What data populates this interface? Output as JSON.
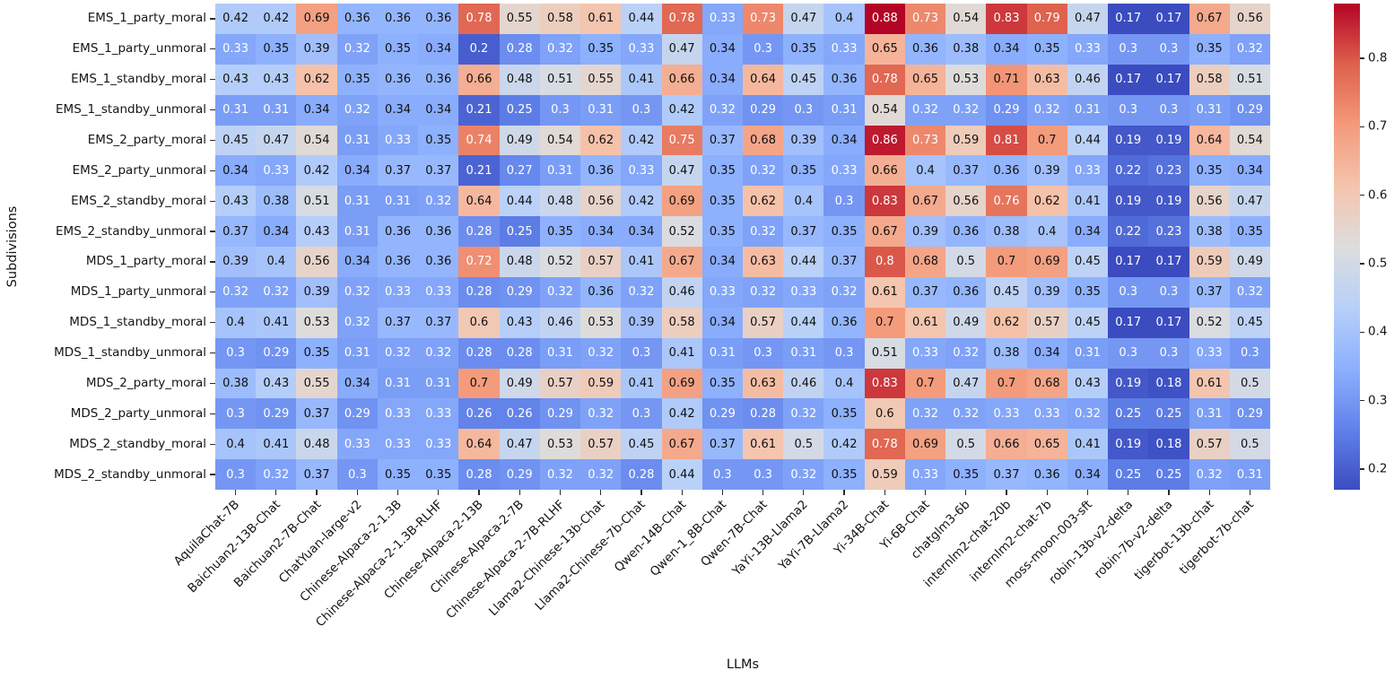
{
  "chart_data": {
    "type": "heatmap",
    "title": "",
    "xlabel": "LLMs",
    "ylabel": "Subdivisions",
    "colormap": "coolwarm",
    "legend_position": "right-colorbar",
    "grid": false,
    "annotation_precision": 2,
    "color_scale": {
      "vmin": 0.17,
      "vmax": 0.88
    },
    "colorbar_ticks": [
      0.2,
      0.3,
      0.4,
      0.5,
      0.6,
      0.7,
      0.8
    ],
    "columns": [
      "AquilaChat-7B",
      "Baichuan2-13B-Chat",
      "Baichuan2-7B-Chat",
      "ChatYuan-large-v2",
      "Chinese-Alpaca-2-1.3B",
      "Chinese-Alpaca-2-1.3B-RLHF",
      "Chinese-Alpaca-2-13B",
      "Chinese-Alpaca-2-7B",
      "Chinese-Alpaca-2-7B-RLHF",
      "Llama2-Chinese-13b-Chat",
      "Llama2-Chinese-7b-Chat",
      "Qwen-14B-Chat",
      "Qwen-1_8B-Chat",
      "Qwen-7B-Chat",
      "YaYi-13B-Llama2",
      "YaYi-7B-Llama2",
      "Yi-34B-Chat",
      "Yi-6B-Chat",
      "chatglm3-6b",
      "internlm2-chat-20b",
      "internlm2-chat-7b",
      "moss-moon-003-sft",
      "robin-13b-v2-delta",
      "robin-7b-v2-delta",
      "tigerbot-13b-chat",
      "tigerbot-7b-chat"
    ],
    "rows": [
      "EMS_1_party_moral",
      "EMS_1_party_unmoral",
      "EMS_1_standby_moral",
      "EMS_1_standby_unmoral",
      "EMS_2_party_moral",
      "EMS_2_party_unmoral",
      "EMS_2_standby_moral",
      "EMS_2_standby_unmoral",
      "MDS_1_party_moral",
      "MDS_1_party_unmoral",
      "MDS_1_standby_moral",
      "MDS_1_standby_unmoral",
      "MDS_2_party_moral",
      "MDS_2_party_unmoral",
      "MDS_2_standby_moral",
      "MDS_2_standby_unmoral"
    ],
    "values": [
      [
        0.42,
        0.42,
        0.69,
        0.36,
        0.36,
        0.36,
        0.78,
        0.55,
        0.58,
        0.61,
        0.44,
        0.78,
        0.33,
        0.73,
        0.47,
        0.4,
        0.88,
        0.73,
        0.54,
        0.83,
        0.79,
        0.47,
        0.17,
        0.17,
        0.67,
        0.56
      ],
      [
        0.33,
        0.35,
        0.39,
        0.32,
        0.35,
        0.34,
        0.2,
        0.28,
        0.32,
        0.35,
        0.33,
        0.47,
        0.34,
        0.3,
        0.35,
        0.33,
        0.65,
        0.36,
        0.38,
        0.34,
        0.35,
        0.33,
        0.3,
        0.3,
        0.35,
        0.32
      ],
      [
        0.43,
        0.43,
        0.62,
        0.35,
        0.36,
        0.36,
        0.66,
        0.48,
        0.51,
        0.55,
        0.41,
        0.66,
        0.34,
        0.64,
        0.45,
        0.36,
        0.78,
        0.65,
        0.53,
        0.71,
        0.63,
        0.46,
        0.17,
        0.17,
        0.58,
        0.51
      ],
      [
        0.31,
        0.31,
        0.34,
        0.32,
        0.34,
        0.34,
        0.21,
        0.25,
        0.3,
        0.31,
        0.3,
        0.42,
        0.32,
        0.29,
        0.3,
        0.31,
        0.54,
        0.32,
        0.32,
        0.29,
        0.32,
        0.31,
        0.3,
        0.3,
        0.31,
        0.29
      ],
      [
        0.45,
        0.47,
        0.54,
        0.31,
        0.33,
        0.35,
        0.74,
        0.49,
        0.54,
        0.62,
        0.42,
        0.75,
        0.37,
        0.68,
        0.39,
        0.34,
        0.86,
        0.73,
        0.59,
        0.81,
        0.7,
        0.44,
        0.19,
        0.19,
        0.64,
        0.54
      ],
      [
        0.34,
        0.33,
        0.42,
        0.34,
        0.37,
        0.37,
        0.21,
        0.27,
        0.31,
        0.36,
        0.33,
        0.47,
        0.35,
        0.32,
        0.35,
        0.33,
        0.66,
        0.4,
        0.37,
        0.36,
        0.39,
        0.33,
        0.22,
        0.23,
        0.35,
        0.34
      ],
      [
        0.43,
        0.38,
        0.51,
        0.31,
        0.31,
        0.32,
        0.64,
        0.44,
        0.48,
        0.56,
        0.42,
        0.69,
        0.35,
        0.62,
        0.4,
        0.3,
        0.83,
        0.67,
        0.56,
        0.76,
        0.62,
        0.41,
        0.19,
        0.19,
        0.56,
        0.47
      ],
      [
        0.37,
        0.34,
        0.43,
        0.31,
        0.36,
        0.36,
        0.28,
        0.25,
        0.35,
        0.34,
        0.34,
        0.52,
        0.35,
        0.32,
        0.37,
        0.35,
        0.67,
        0.39,
        0.36,
        0.38,
        0.4,
        0.34,
        0.22,
        0.23,
        0.38,
        0.35
      ],
      [
        0.39,
        0.4,
        0.56,
        0.34,
        0.36,
        0.36,
        0.72,
        0.48,
        0.52,
        0.57,
        0.41,
        0.67,
        0.34,
        0.63,
        0.44,
        0.37,
        0.8,
        0.68,
        0.5,
        0.7,
        0.69,
        0.45,
        0.17,
        0.17,
        0.59,
        0.49
      ],
      [
        0.32,
        0.32,
        0.39,
        0.32,
        0.33,
        0.33,
        0.28,
        0.29,
        0.32,
        0.36,
        0.32,
        0.46,
        0.33,
        0.32,
        0.33,
        0.32,
        0.61,
        0.37,
        0.36,
        0.45,
        0.39,
        0.35,
        0.3,
        0.3,
        0.37,
        0.32
      ],
      [
        0.4,
        0.41,
        0.53,
        0.32,
        0.37,
        0.37,
        0.6,
        0.43,
        0.46,
        0.53,
        0.39,
        0.58,
        0.34,
        0.57,
        0.44,
        0.36,
        0.7,
        0.61,
        0.49,
        0.62,
        0.57,
        0.45,
        0.17,
        0.17,
        0.52,
        0.45
      ],
      [
        0.3,
        0.29,
        0.35,
        0.31,
        0.32,
        0.32,
        0.28,
        0.28,
        0.31,
        0.32,
        0.3,
        0.41,
        0.31,
        0.3,
        0.31,
        0.3,
        0.51,
        0.33,
        0.32,
        0.38,
        0.34,
        0.31,
        0.3,
        0.3,
        0.33,
        0.3
      ],
      [
        0.38,
        0.43,
        0.55,
        0.34,
        0.31,
        0.31,
        0.7,
        0.49,
        0.57,
        0.59,
        0.41,
        0.69,
        0.35,
        0.63,
        0.46,
        0.4,
        0.83,
        0.7,
        0.47,
        0.7,
        0.68,
        0.43,
        0.19,
        0.18,
        0.61,
        0.5
      ],
      [
        0.3,
        0.29,
        0.37,
        0.29,
        0.33,
        0.33,
        0.26,
        0.26,
        0.29,
        0.32,
        0.3,
        0.42,
        0.29,
        0.28,
        0.32,
        0.35,
        0.6,
        0.32,
        0.32,
        0.33,
        0.33,
        0.32,
        0.25,
        0.25,
        0.31,
        0.29
      ],
      [
        0.4,
        0.41,
        0.48,
        0.33,
        0.33,
        0.33,
        0.64,
        0.47,
        0.53,
        0.57,
        0.45,
        0.67,
        0.37,
        0.61,
        0.5,
        0.42,
        0.78,
        0.69,
        0.5,
        0.66,
        0.65,
        0.41,
        0.19,
        0.18,
        0.57,
        0.5
      ],
      [
        0.3,
        0.32,
        0.37,
        0.3,
        0.35,
        0.35,
        0.28,
        0.29,
        0.32,
        0.32,
        0.28,
        0.44,
        0.3,
        0.3,
        0.32,
        0.35,
        0.59,
        0.33,
        0.35,
        0.37,
        0.36,
        0.34,
        0.25,
        0.25,
        0.32,
        0.31
      ]
    ]
  }
}
